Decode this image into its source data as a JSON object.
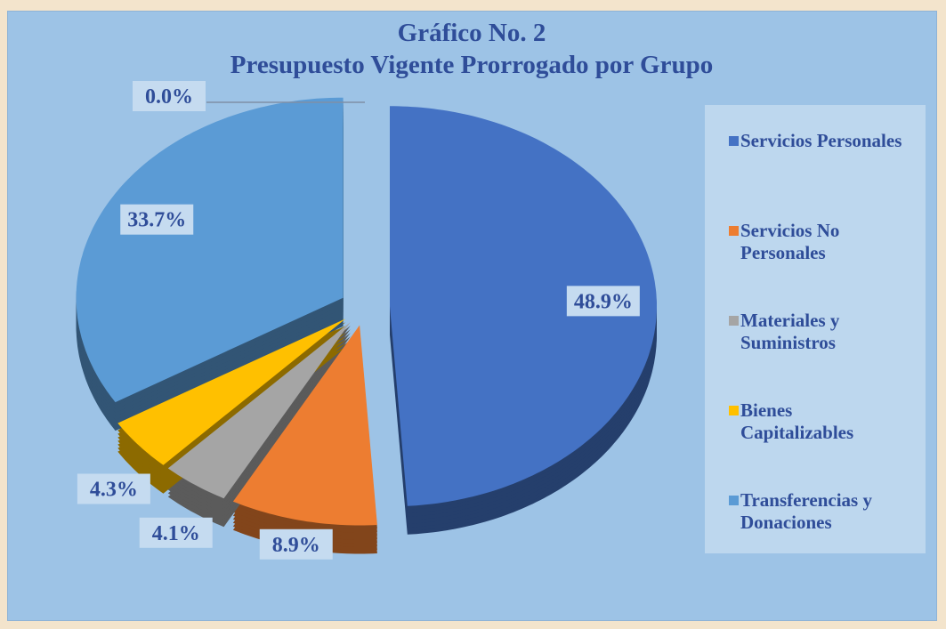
{
  "chart_data": {
    "type": "pie",
    "title": "Gráfico No. 2",
    "subtitle": "Presupuesto  Vigente  Prorrogado por Grupo",
    "categories": [
      "Servicios Personales",
      "Servicios No Personales",
      "Materiales y Suministros",
      "Bienes Capitalizables",
      "Transferencias y Donaciones",
      null
    ],
    "values": [
      48.9,
      8.9,
      4.1,
      4.3,
      33.7,
      0.0
    ],
    "value_labels": [
      "48.9%",
      "8.9%",
      "4.1%",
      "4.3%",
      "33.7%",
      "0.0%"
    ],
    "colors": [
      "#4472c4",
      "#ed7d31",
      "#a5a5a5",
      "#ffc000",
      "#5b9bd5",
      "#264478"
    ],
    "legend": "right"
  }
}
